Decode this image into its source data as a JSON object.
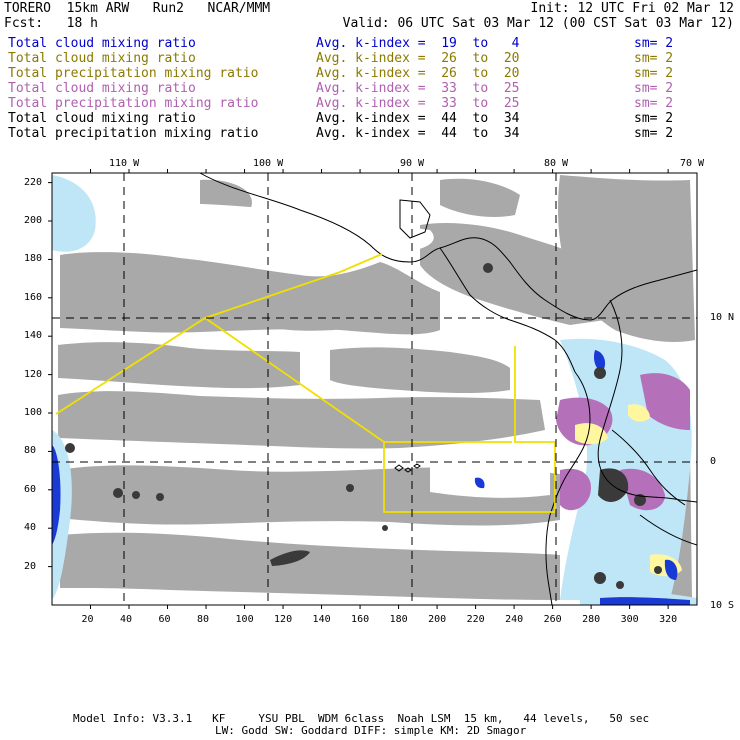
{
  "header": {
    "title": "TORERO  15km ARW   Run2   NCAR/MMM",
    "init": "Init: 12 UTC Fri 02 Mar 12",
    "fcst": "Fcst:   18 h",
    "valid": "Valid: 06 UTC Sat 03 Mar 12 (00 CST Sat 03 Mar 12)"
  },
  "fields": [
    {
      "name": "Total cloud mixing ratio",
      "kindex": "Avg. k-index =  19  to   4",
      "sm": "sm= 2",
      "color": "#0000cc"
    },
    {
      "name": "Total cloud mixing ratio",
      "kindex": "Avg. k-index =  26  to  20",
      "sm": "sm= 2",
      "color": "#8c7a00"
    },
    {
      "name": "Total precipitation mixing ratio",
      "kindex": "Avg. k-index =  26  to  20",
      "sm": "sm= 2",
      "color": "#8c7a00"
    },
    {
      "name": "Total cloud mixing ratio",
      "kindex": "Avg. k-index =  33  to  25",
      "sm": "sm= 2",
      "color": "#b060b0"
    },
    {
      "name": "Total precipitation mixing ratio",
      "kindex": "Avg. k-index =  33  to  25",
      "sm": "sm= 2",
      "color": "#b060b0"
    },
    {
      "name": "Total cloud mixing ratio",
      "kindex": "Avg. k-index =  44  to  34",
      "sm": "sm= 2",
      "color": "#000000"
    },
    {
      "name": "Total precipitation mixing ratio",
      "kindex": "Avg. k-index =  44  to  34",
      "sm": "sm= 2",
      "color": "#000000"
    }
  ],
  "map": {
    "lon_labels": [
      "110 W",
      "100 W",
      "90 W",
      "80 W",
      "70 W"
    ],
    "lat_labels": [
      "10 N",
      "0",
      "10 S"
    ],
    "x_ticks": [
      "20",
      "40",
      "60",
      "80",
      "100",
      "120",
      "140",
      "160",
      "180",
      "200",
      "220",
      "240",
      "260",
      "280",
      "300",
      "320"
    ],
    "y_ticks": [
      "220",
      "200",
      "180",
      "160",
      "140",
      "120",
      "100",
      "80",
      "60",
      "40",
      "20"
    ],
    "x_range": [
      0,
      335
    ],
    "y_range": [
      0,
      225
    ],
    "colors": {
      "cloud_light": "#a9a9a9",
      "cloud_dark": "#3a3a3a",
      "cyan": "#bfe6f7",
      "blue": "#1a3ad6",
      "magenta": "#b470b8",
      "yellow_fill": "#fff6a0",
      "flight_track": "#f0e000",
      "coastline": "#000000"
    }
  },
  "footer": {
    "line1": "Model Info: V3.3.1   KF     YSU PBL  WDM 6class  Noah LSM  15 km,   44 levels,   50 sec",
    "line2": "LW: Godd SW: Goddard DIFF: simple KM: 2D Smagor"
  }
}
